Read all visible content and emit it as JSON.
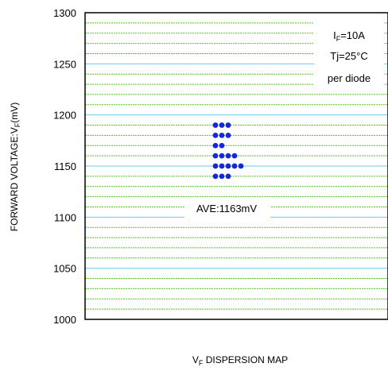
{
  "chart_data": {
    "type": "scatter",
    "title": "",
    "xlabel": {
      "main": "V",
      "sub": "F",
      "rest": " DISPERSION MAP"
    },
    "ylabel": {
      "main": "FORWARD VOLTAGE:V",
      "sub": "F",
      "rest": "(mV)"
    },
    "ylim": [
      1000,
      1300
    ],
    "yticks": [
      1000,
      1050,
      1100,
      1150,
      1200,
      1250,
      1300
    ],
    "grid": {
      "major_color": "#66ccee",
      "minor_color": "#55cc22",
      "minor_step": 10,
      "major_step": 50
    },
    "marker_color": "#1428d8",
    "dot_rows": [
      {
        "y": 1190,
        "count": 3
      },
      {
        "y": 1180,
        "count": 3
      },
      {
        "y": 1170,
        "count": 2
      },
      {
        "y": 1160,
        "count": 4
      },
      {
        "y": 1150,
        "count": 5
      },
      {
        "y": 1140,
        "count": 3
      }
    ],
    "annotations": {
      "conditions": [
        {
          "main": "I",
          "sub": "F",
          "rest": "=10A"
        },
        {
          "main": "Tj=25°C",
          "sub": "",
          "rest": ""
        },
        {
          "main": "per diode",
          "sub": "",
          "rest": ""
        }
      ],
      "average": "AVE:1163mV"
    }
  }
}
